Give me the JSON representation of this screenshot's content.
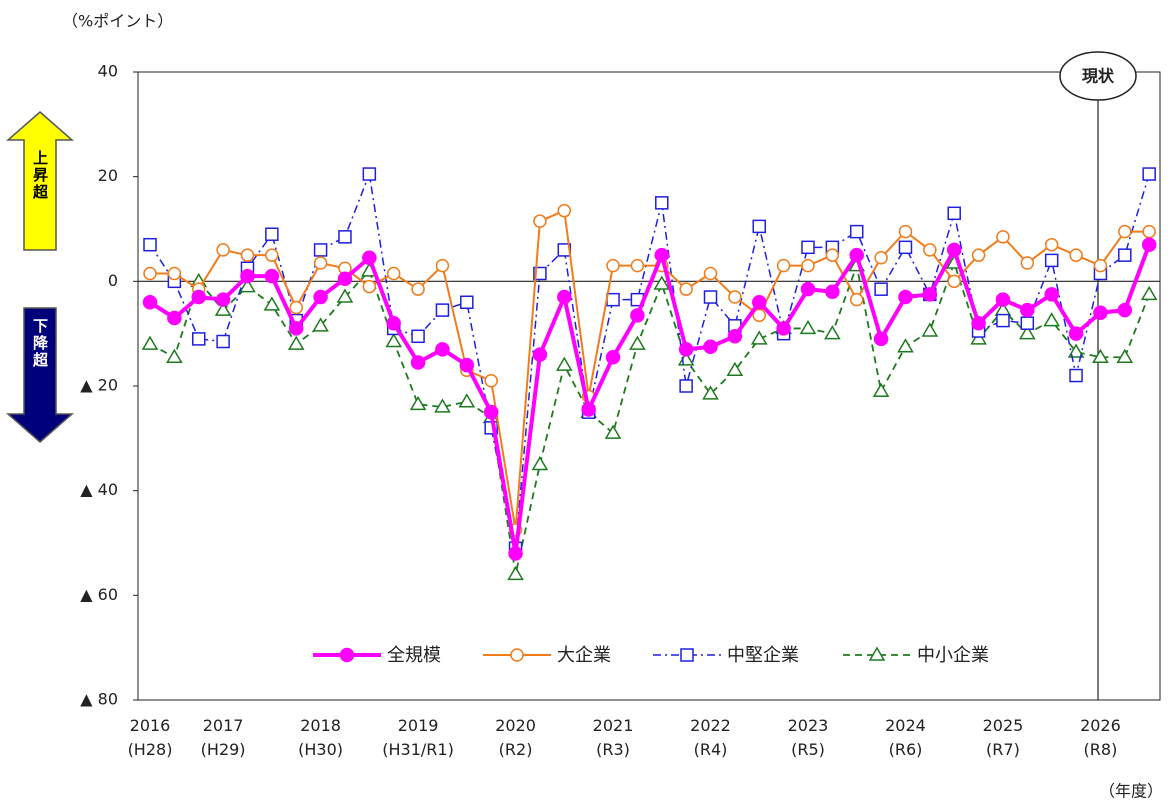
{
  "chart_data": {
    "type": "line",
    "y_unit": "（%ポイント）",
    "x_unit": "（年度）",
    "annotation": "現状",
    "up_label": "上昇超",
    "down_label": "下降超",
    "categories": [
      "2016\n(H28)",
      null,
      null,
      "2017\n(H29)",
      null,
      null,
      null,
      "2018\n(H30)",
      null,
      null,
      null,
      "2019\n(H31/R1)",
      null,
      null,
      null,
      "2020\n(R2)",
      null,
      null,
      null,
      "2021\n(R3)",
      null,
      null,
      null,
      "2022\n(R4)",
      null,
      null,
      null,
      "2023\n(R5)",
      null,
      null,
      null,
      "2024\n(R6)",
      null,
      null,
      null,
      "2025\n(R7)",
      null,
      null,
      null,
      "2026\n(R8)",
      null,
      null
    ],
    "ylim": [
      -80,
      40
    ],
    "yticks": [
      40,
      20,
      0,
      {
        "value": -20,
        "label": "▲ 20"
      },
      {
        "value": -40,
        "label": "▲ 40"
      },
      {
        "value": -60,
        "label": "▲ 60"
      },
      {
        "value": -80,
        "label": "▲ 80"
      }
    ],
    "series": [
      {
        "name": "全規模",
        "color": "#ff00ff",
        "marker": "circle-filled",
        "dash": "solid",
        "width": 4,
        "values": [
          -4,
          -7,
          -3,
          -3.5,
          1,
          1,
          -9,
          -3,
          0.5,
          4.5,
          -8,
          -15.5,
          -13,
          -16,
          -25,
          -52,
          -14,
          -3,
          -24.5,
          -14.5,
          -6.5,
          5,
          -13,
          -12.5,
          -10.5,
          -4,
          -9,
          -1.5,
          -2,
          5,
          -11,
          -3,
          -2.5,
          6,
          -8,
          -3.5,
          -5.5,
          -2.5,
          -10,
          -6,
          -5.5,
          7
        ]
      },
      {
        "name": "大企業",
        "color": "#f07c1c",
        "marker": "circle",
        "dash": "solid",
        "width": 2,
        "values": [
          1.5,
          1.5,
          -1.5,
          6,
          5,
          5,
          -5,
          3.5,
          2.5,
          -1,
          1.5,
          -1.5,
          3,
          -17,
          -19,
          -47.5,
          11.5,
          13.5,
          -22,
          3,
          3,
          3,
          -1.5,
          1.5,
          -3,
          -6.5,
          3,
          3,
          5,
          -3.5,
          4.5,
          9.5,
          6,
          0,
          5,
          8.5,
          3.5,
          7,
          5,
          3,
          9.5,
          9.5
        ]
      },
      {
        "name": "中堅企業",
        "color": "#1f1fe0",
        "marker": "square",
        "dash": "8 4 2 4",
        "width": 1.5,
        "values": [
          7,
          0,
          -11,
          -11.5,
          2.5,
          9,
          -7.5,
          6,
          8.5,
          20.5,
          -9,
          -10.5,
          -5.5,
          -4,
          -28,
          -51,
          1.5,
          6,
          -25,
          -3.5,
          -3.5,
          15,
          -20,
          -3,
          -8.5,
          10.5,
          -10,
          6.5,
          6.5,
          9.5,
          -1.5,
          6.5,
          -2.5,
          13,
          -9.5,
          -7.5,
          -8,
          4,
          -18,
          1.5,
          5,
          20.5
        ]
      },
      {
        "name": "中小企業",
        "color": "#1e7a1e",
        "marker": "triangle",
        "dash": "7 5",
        "width": 1.8,
        "values": [
          -12,
          -14.5,
          0,
          -5.5,
          -1,
          -4.5,
          -12,
          -8.5,
          -3,
          2,
          -11.5,
          -23.5,
          -24,
          -23,
          -26,
          -56,
          -35,
          -16,
          -25,
          -29,
          -12,
          -0.5,
          -15,
          -21.5,
          -17,
          -11,
          -9,
          -9,
          -10,
          3,
          -21,
          -12.5,
          -9.5,
          3.5,
          -11,
          -5.5,
          -10,
          -7.5,
          -13.5,
          -14.5,
          -14.5,
          -2.5
        ]
      }
    ]
  }
}
